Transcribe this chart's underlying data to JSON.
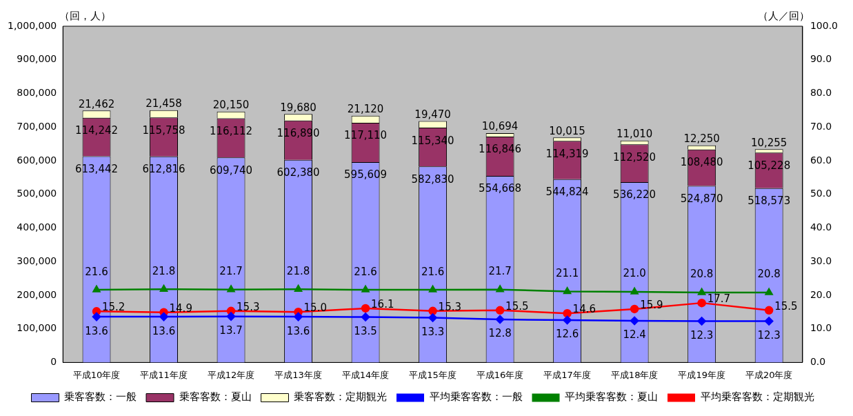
{
  "chart_data": {
    "type": "bar",
    "stacked": true,
    "ylabel": "（回，人）",
    "y2label": "（人／回）",
    "categories": [
      "平成10年度",
      "平成11年度",
      "平成12年度",
      "平成13年度",
      "平成14年度",
      "平成15年度",
      "平成16年度",
      "平成17年度",
      "平成18年度",
      "平成19年度",
      "平成20年度"
    ],
    "series": [
      {
        "name": "乗客客数：一般",
        "color": "#9999ff",
        "values": [
          613442,
          612816,
          609740,
          602380,
          595609,
          582830,
          554668,
          544824,
          536220,
          524870,
          518573
        ],
        "value_labels": [
          "613,442",
          "612,816",
          "609,740",
          "602,380",
          "595,609",
          "582,830",
          "554,668",
          "544,824",
          "536,220",
          "524,870",
          "518,573"
        ]
      },
      {
        "name": "乗客客数：夏山",
        "color": "#993366",
        "values": [
          114242,
          115758,
          116112,
          116890,
          117110,
          115340,
          116846,
          114319,
          112520,
          108480,
          105228
        ],
        "value_labels": [
          "114,242",
          "115,758",
          "116,112",
          "116,890",
          "117,110",
          "115,340",
          "116,846",
          "114,319",
          "112,520",
          "108,480",
          "105,228"
        ]
      },
      {
        "name": "乗客客数：定期観光",
        "color": "#ffffcc",
        "values": [
          21462,
          21458,
          20150,
          19680,
          21120,
          19470,
          10694,
          10015,
          11010,
          12250,
          10255
        ],
        "value_labels": [
          "21,462",
          "21,458",
          "20,150",
          "19,680",
          "21,120",
          "19,470",
          "10,694",
          "10,015",
          "11,010",
          "12,250",
          "10,255"
        ]
      },
      {
        "name": "平均乗客客数：一般",
        "type": "line",
        "axis": "y2",
        "marker": "diamond",
        "color": "#0000ff",
        "values": [
          13.6,
          13.6,
          13.7,
          13.6,
          13.5,
          13.3,
          12.8,
          12.6,
          12.4,
          12.3,
          12.3
        ],
        "value_labels": [
          "13.6",
          "13.6",
          "13.7",
          "13.6",
          "13.5",
          "13.3",
          "12.8",
          "12.6",
          "12.4",
          "12.3",
          "12.3"
        ]
      },
      {
        "name": "平均乗客客数：夏山",
        "type": "line",
        "axis": "y2",
        "marker": "triangle",
        "color": "#008000",
        "values": [
          21.6,
          21.8,
          21.7,
          21.8,
          21.6,
          21.6,
          21.7,
          21.1,
          21.0,
          20.8,
          20.8
        ],
        "value_labels": [
          "21.6",
          "21.8",
          "21.7",
          "21.8",
          "21.6",
          "21.6",
          "21.7",
          "21.1",
          "21.0",
          "20.8",
          "20.8"
        ]
      },
      {
        "name": "平均乗客客数：定期観光",
        "type": "line",
        "axis": "y2",
        "marker": "circle",
        "color": "#ff0000",
        "values": [
          15.2,
          14.9,
          15.3,
          15.0,
          16.1,
          15.3,
          15.5,
          14.6,
          15.9,
          17.7,
          15.5
        ],
        "value_labels": [
          "15.2",
          "14.9",
          "15.3",
          "15.0",
          "16.1",
          "15.3",
          "15.5",
          "14.6",
          "15.9",
          "17.7",
          "15.5"
        ]
      }
    ],
    "ylim": [
      0,
      1000000
    ],
    "yticks": [
      0,
      {
        "value": 100000,
        "label": "100,000"
      },
      {
        "value": 200000,
        "label": "200,000"
      },
      {
        "value": 300000,
        "label": "300,000"
      },
      {
        "value": 400000,
        "label": "400,000"
      },
      {
        "value": 500000,
        "label": "500,000"
      },
      {
        "value": 600000,
        "label": "600,000"
      },
      {
        "value": 700000,
        "label": "700,000"
      },
      {
        "value": 800000,
        "label": "800,000"
      },
      {
        "value": 900000,
        "label": "900,000"
      },
      {
        "value": 1000000,
        "label": "1,000,000"
      }
    ],
    "y2lim": [
      0,
      100
    ],
    "y2ticks": [
      {
        "value": 0,
        "label": "0.0"
      },
      {
        "value": 10,
        "label": "10.0"
      },
      {
        "value": 20,
        "label": "20.0"
      },
      {
        "value": 30,
        "label": "30.0"
      },
      {
        "value": 40,
        "label": "40.0"
      },
      {
        "value": 50,
        "label": "50.0"
      },
      {
        "value": 60,
        "label": "60.0"
      },
      {
        "value": 70,
        "label": "70.0"
      },
      {
        "value": 80,
        "label": "80.0"
      },
      {
        "value": 90,
        "label": "90.0"
      },
      {
        "value": 100,
        "label": "100.0"
      }
    ],
    "grid": false,
    "legend": "bottom"
  }
}
